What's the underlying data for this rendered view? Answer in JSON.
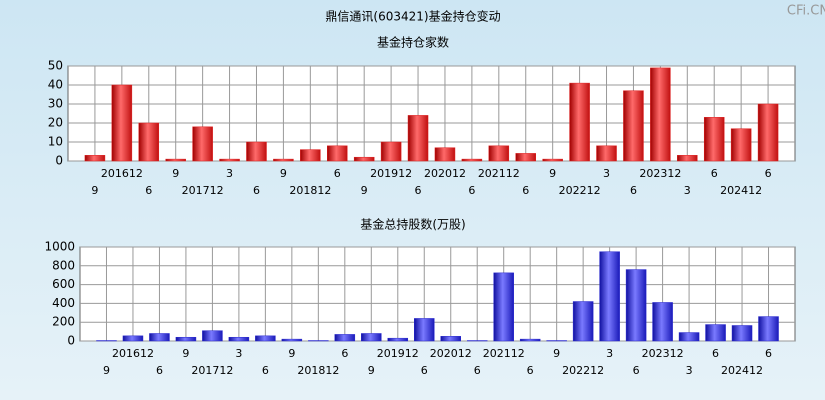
{
  "title": "鼎信通讯(603421)基金持仓变动",
  "watermark": "CFi.CN",
  "chart_data": [
    {
      "type": "bar",
      "title": "基金持仓家数",
      "categories": [
        "9",
        "201612",
        "6",
        "9",
        "201712",
        "3",
        "6",
        "9",
        "201812",
        "6",
        "9",
        "201912",
        "6",
        "202012",
        "6",
        "202112",
        "6",
        "9",
        "202212",
        "3",
        "6",
        "202312",
        "3",
        "6",
        "202412",
        "6"
      ],
      "values": [
        3,
        40,
        20,
        1,
        18,
        1,
        10,
        1,
        6,
        8,
        2,
        10,
        24,
        7,
        1,
        8,
        4,
        1,
        41,
        8,
        37,
        49,
        3,
        23,
        17,
        30
      ],
      "color": "#e02020",
      "ylim": [
        0,
        50
      ],
      "yticks": [
        0,
        10,
        20,
        30,
        40,
        50
      ],
      "grid": true
    },
    {
      "type": "bar",
      "title": "基金总持股数(万股)",
      "categories": [
        "9",
        "201612",
        "6",
        "9",
        "201712",
        "3",
        "6",
        "9",
        "201812",
        "6",
        "9",
        "201912",
        "6",
        "202012",
        "6",
        "202112",
        "6",
        "9",
        "202212",
        "3",
        "6",
        "202312",
        "3",
        "6",
        "202412",
        "6"
      ],
      "values": [
        5,
        55,
        80,
        40,
        110,
        40,
        55,
        20,
        5,
        70,
        80,
        30,
        240,
        50,
        5,
        725,
        20,
        5,
        420,
        950,
        760,
        410,
        90,
        175,
        165,
        260
      ],
      "color": "#2a2ad0",
      "ylim": [
        0,
        1000
      ],
      "yticks": [
        0,
        200,
        400,
        600,
        800,
        1000
      ],
      "grid": true
    }
  ]
}
